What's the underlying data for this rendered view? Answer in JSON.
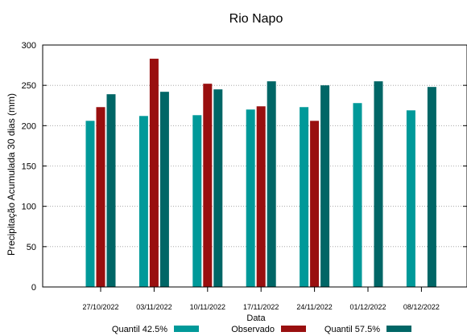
{
  "chart_data": {
    "type": "bar",
    "title": "Rio Napo",
    "xlabel": "Data",
    "ylabel": "Precipitação Acumulada 30 dias (mm)",
    "ylim": [
      0,
      300
    ],
    "yticks": [
      0,
      50,
      100,
      150,
      200,
      250,
      300
    ],
    "grid": true,
    "legend_position": "bottom",
    "categories": [
      "27/10/2022",
      "03/11/2022",
      "10/11/2022",
      "17/11/2022",
      "24/11/2022",
      "01/12/2022",
      "08/12/2022"
    ],
    "series": [
      {
        "name": "Quantil 42.5%",
        "color": "#009999",
        "values": [
          206,
          212,
          213,
          220,
          223,
          228,
          219
        ]
      },
      {
        "name": "Observado",
        "color": "#990f0f",
        "values": [
          223,
          283,
          252,
          224,
          206,
          null,
          null
        ]
      },
      {
        "name": "Quantil 57.5%",
        "color": "#006666",
        "values": [
          239,
          242,
          245,
          255,
          250,
          255,
          248
        ]
      }
    ]
  }
}
